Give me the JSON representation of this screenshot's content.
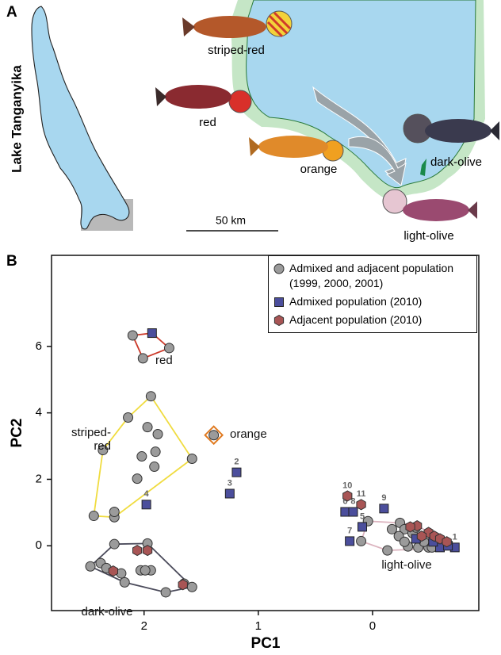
{
  "panel_a": {
    "label": "A",
    "lake_label": "Lake Tanganyika",
    "scale_label": "50 km",
    "populations": [
      "striped-red",
      "red",
      "orange",
      "dark-olive",
      "light-olive"
    ]
  },
  "chart_data": {
    "type": "scatter",
    "panel_label": "B",
    "xlabel": "PC1",
    "ylabel": "PC2",
    "xlim": [
      2.81,
      -0.93
    ],
    "ylim": [
      -1.95,
      8.74
    ],
    "xticks": [
      2,
      1,
      0
    ],
    "yticks": [
      0,
      2,
      4,
      6
    ],
    "legend": "upper right",
    "groups": [
      {
        "name": "red",
        "color": "#cc3a2a"
      },
      {
        "name": "striped-red",
        "color": "#f0dc40"
      },
      {
        "name": "orange",
        "color": "#e07a20"
      },
      {
        "name": "dark-olive",
        "color": "#4a4a5a"
      },
      {
        "name": "light-olive",
        "color": "#dcb4bf"
      }
    ],
    "series": [
      {
        "name": "Admixed and adjacent population (1999, 2000, 2001)",
        "color": "#9b9b9b",
        "marker": "circle",
        "x": [
          2.1,
          1.78,
          2.01,
          1.94,
          2.14,
          1.88,
          1.58,
          2.36,
          2.44,
          2.26,
          2.26,
          2.02,
          1.9,
          2.06,
          1.91,
          1.97,
          1.39,
          2.47,
          2.26,
          1.97,
          1.65,
          1.58,
          1.81,
          1.94,
          2.03,
          1.99,
          2.38,
          2.33,
          2.17,
          2.2,
          0.1,
          0.04,
          -0.13,
          -0.17,
          -0.24,
          -0.28,
          -0.31,
          -0.4,
          -0.49,
          -0.23,
          -0.35,
          -0.45,
          -0.52,
          -0.28,
          -0.38
        ],
        "values": [
          6.33,
          5.95,
          5.64,
          4.5,
          3.86,
          3.36,
          2.62,
          2.88,
          0.9,
          0.86,
          1.02,
          2.69,
          2.83,
          2.02,
          2.38,
          3.57,
          3.33,
          -0.62,
          0.05,
          0.07,
          -1.14,
          -1.24,
          -1.4,
          -0.74,
          -0.74,
          -0.74,
          -0.52,
          -0.67,
          -1.1,
          -0.83,
          0.14,
          0.74,
          -0.14,
          0.5,
          0.69,
          0.5,
          -0.02,
          -0.05,
          -0.05,
          0.29,
          0.38,
          0.12,
          -0.05,
          0.12,
          0.55
        ],
        "groups": [
          "red",
          "red",
          "red",
          "striped-red",
          "striped-red",
          "striped-red",
          "striped-red",
          "striped-red",
          "striped-red",
          "striped-red",
          "striped-red",
          "striped-red",
          "striped-red",
          "striped-red",
          "striped-red",
          "striped-red",
          "orange",
          "dark-olive",
          "dark-olive",
          "dark-olive",
          "dark-olive",
          "dark-olive",
          "dark-olive",
          "dark-olive",
          "dark-olive",
          "dark-olive",
          "dark-olive",
          "dark-olive",
          "dark-olive",
          "dark-olive",
          "light-olive",
          "light-olive",
          "light-olive",
          "light-olive",
          "light-olive",
          "light-olive",
          "light-olive",
          "light-olive",
          "light-olive",
          "light-olive",
          "light-olive",
          "light-olive",
          "light-olive",
          "light-olive",
          "light-olive"
        ],
        "point_labels": [
          null,
          null,
          null,
          null,
          null,
          null,
          null,
          null,
          null,
          null,
          null,
          null,
          null,
          null,
          null,
          null,
          null,
          null,
          null,
          null,
          null,
          null,
          null,
          null,
          null,
          null,
          null,
          null,
          null,
          null,
          null,
          null,
          null,
          null,
          null,
          null,
          null,
          null,
          null,
          null,
          null,
          null,
          null,
          null,
          null
        ]
      },
      {
        "name": "Admixed population (2010)",
        "color": "#4b4e9c",
        "marker": "square",
        "x": [
          1.93,
          1.98,
          1.19,
          1.25,
          0.2,
          0.09,
          -0.1,
          0.24,
          0.17,
          -0.72,
          -0.59,
          -0.66,
          -0.53,
          -0.38
        ],
        "values": [
          6.4,
          1.24,
          2.21,
          1.57,
          0.14,
          0.57,
          1.12,
          1.02,
          1.02,
          -0.05,
          -0.05,
          0,
          0.12,
          0.21
        ],
        "groups": [
          "red",
          null,
          null,
          null,
          null,
          null,
          null,
          null,
          null,
          "light-olive",
          "light-olive",
          "light-olive",
          "light-olive",
          "light-olive"
        ],
        "point_labels": [
          null,
          "4",
          "2",
          "3",
          "7",
          "5",
          "9",
          "6",
          "8",
          "1",
          null,
          null,
          null,
          null
        ]
      },
      {
        "name": "Adjacent population (2010)",
        "color": "#a85555",
        "marker": "hexagon",
        "x": [
          2.06,
          1.97,
          2.27,
          1.66,
          0.22,
          0.1,
          -0.39,
          -0.49,
          -0.54,
          -0.59,
          -0.43,
          -0.33,
          -0.65
        ],
        "values": [
          -0.14,
          -0.14,
          -0.76,
          -1.17,
          1.5,
          1.24,
          0.6,
          0.4,
          0.29,
          0.21,
          0.29,
          0.57,
          0.12
        ],
        "groups": [
          "dark-olive",
          "dark-olive",
          "dark-olive",
          "dark-olive",
          null,
          null,
          "light-olive",
          "light-olive",
          "light-olive",
          "light-olive",
          "light-olive",
          "light-olive",
          "light-olive"
        ],
        "point_labels": [
          null,
          null,
          null,
          null,
          "10",
          "11",
          null,
          null,
          null,
          null,
          null,
          null,
          null
        ]
      }
    ]
  }
}
